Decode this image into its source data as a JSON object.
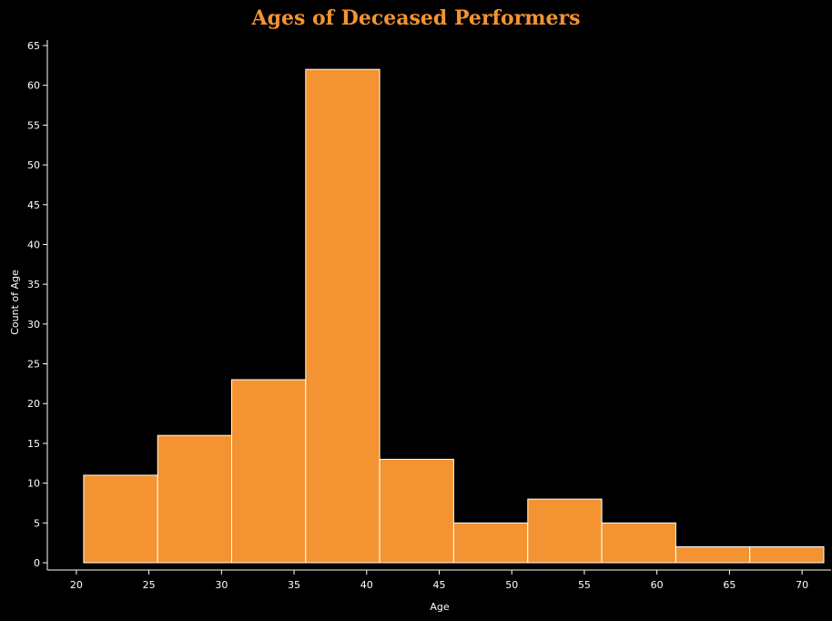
{
  "chart_data": {
    "type": "bar",
    "title": "Ages of Deceased Performers",
    "xlabel": "Age",
    "ylabel": "Count of Age",
    "bin_edges": [
      20.5,
      25.6,
      30.7,
      35.8,
      40.9,
      46.0,
      51.1,
      56.2,
      61.3,
      66.4,
      71.5
    ],
    "values": [
      11,
      16,
      23,
      62,
      13,
      5,
      8,
      5,
      2,
      2
    ],
    "x_ticks": [
      20,
      25,
      30,
      35,
      40,
      45,
      50,
      55,
      60,
      65,
      70
    ],
    "y_ticks": [
      0,
      5,
      10,
      15,
      20,
      25,
      30,
      35,
      40,
      45,
      50,
      55,
      60,
      65
    ],
    "xlim": [
      18,
      72
    ],
    "ylim": [
      0,
      65
    ],
    "grid": false,
    "legend": "none",
    "colors": {
      "background": "#000000",
      "bar": "#F39331",
      "bar_stroke": "#ffffff",
      "title": "#F39331",
      "text": "#ffffff",
      "axis": "#ffffff"
    }
  }
}
